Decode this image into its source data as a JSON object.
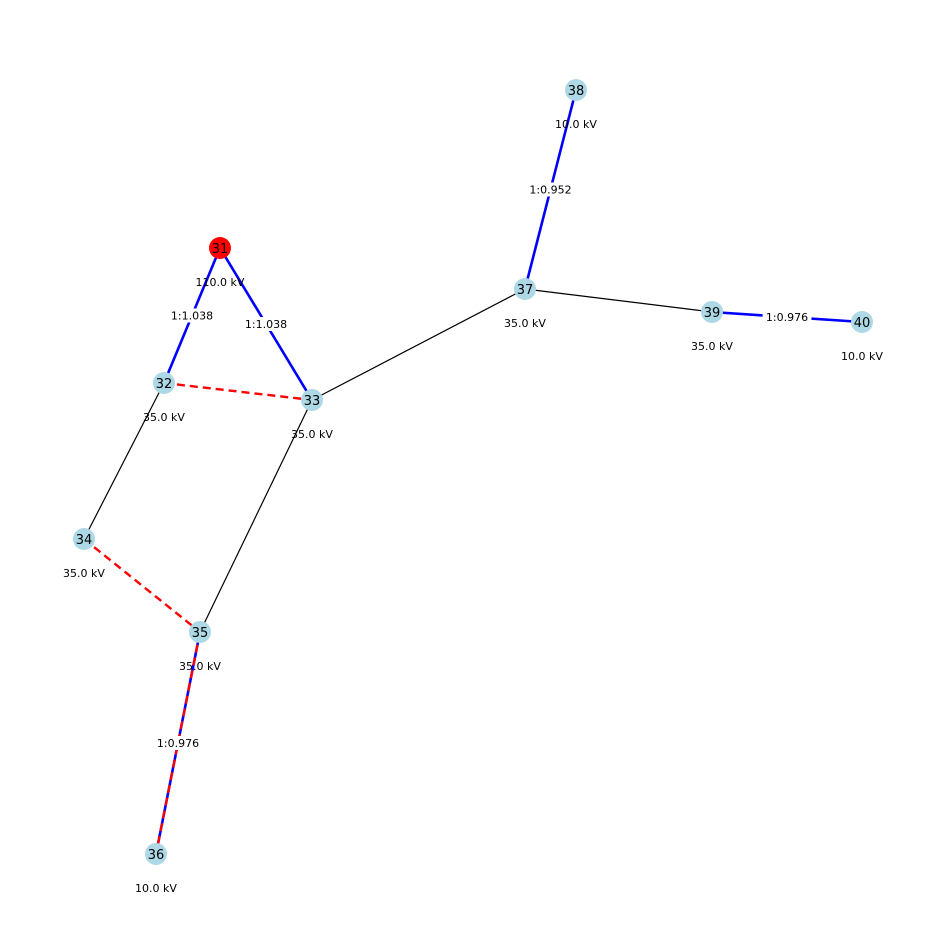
{
  "colors": {
    "background": "#ffffff",
    "node_default": "#add8e6",
    "node_slack": "#ff0000",
    "line": "#000000",
    "transformer": "#0000ff",
    "open_dashed": "#ff0000"
  },
  "nodes": [
    {
      "id": "31",
      "label": "31",
      "voltage": "110.0 kV",
      "type": "slack"
    },
    {
      "id": "32",
      "label": "32",
      "voltage": "35.0 kV",
      "type": "bus"
    },
    {
      "id": "33",
      "label": "33",
      "voltage": "35.0 kV",
      "type": "bus"
    },
    {
      "id": "34",
      "label": "34",
      "voltage": "35.0 kV",
      "type": "bus"
    },
    {
      "id": "35",
      "label": "35",
      "voltage": "35.0 kV",
      "type": "bus"
    },
    {
      "id": "36",
      "label": "36",
      "voltage": "10.0 kV",
      "type": "bus"
    },
    {
      "id": "37",
      "label": "37",
      "voltage": "35.0 kV",
      "type": "bus"
    },
    {
      "id": "38",
      "label": "38",
      "voltage": "10.0 kV",
      "type": "bus"
    },
    {
      "id": "39",
      "label": "39",
      "voltage": "35.0 kV",
      "type": "bus"
    },
    {
      "id": "40",
      "label": "40",
      "voltage": "10.0 kV",
      "type": "bus"
    }
  ],
  "edges": [
    {
      "from": "31",
      "to": "32",
      "kind": "transformer",
      "ratio": "1:1.038"
    },
    {
      "from": "31",
      "to": "33",
      "kind": "transformer",
      "ratio": "1:1.038"
    },
    {
      "from": "32",
      "to": "33",
      "kind": "open_line",
      "ratio": ""
    },
    {
      "from": "32",
      "to": "34",
      "kind": "line",
      "ratio": ""
    },
    {
      "from": "33",
      "to": "35",
      "kind": "line",
      "ratio": ""
    },
    {
      "from": "33",
      "to": "37",
      "kind": "line",
      "ratio": ""
    },
    {
      "from": "34",
      "to": "35",
      "kind": "open_line",
      "ratio": ""
    },
    {
      "from": "35",
      "to": "36",
      "kind": "open_transformer",
      "ratio": "1:0.976"
    },
    {
      "from": "37",
      "to": "38",
      "kind": "transformer",
      "ratio": "1:0.952"
    },
    {
      "from": "37",
      "to": "39",
      "kind": "line",
      "ratio": ""
    },
    {
      "from": "39",
      "to": "40",
      "kind": "transformer",
      "ratio": "1:0.976"
    }
  ]
}
